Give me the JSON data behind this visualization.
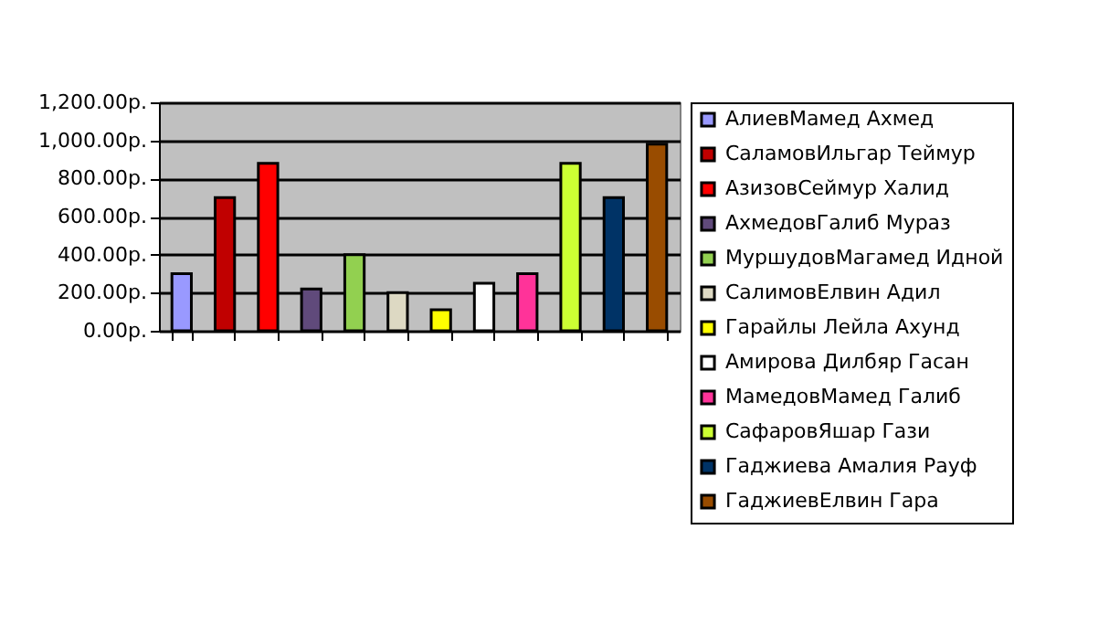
{
  "chart_data": {
    "type": "bar",
    "categories": [
      null,
      null,
      null,
      null,
      null,
      null,
      null,
      null,
      null,
      null,
      null,
      null
    ],
    "series": [
      {
        "name": "АлиевМамед Ахмед",
        "color": "#9999ff",
        "values": [
          300,
          null,
          null,
          null,
          null,
          null,
          null,
          null,
          null,
          null,
          null,
          null
        ]
      },
      {
        "name": "СаламовИльгар Теймур",
        "color": "#c00000",
        "values": [
          null,
          700,
          null,
          null,
          null,
          null,
          null,
          null,
          null,
          null,
          null,
          null
        ]
      },
      {
        "name": "АзизовСеймур Халид",
        "color": "#ff0000",
        "values": [
          null,
          null,
          880,
          null,
          null,
          null,
          null,
          null,
          null,
          null,
          null,
          null
        ]
      },
      {
        "name": "АхмедовГалиб Мураз",
        "color": "#604a7b",
        "values": [
          null,
          null,
          null,
          220,
          null,
          null,
          null,
          null,
          null,
          null,
          null,
          null
        ]
      },
      {
        "name": "МуршудовМагамед Идной",
        "color": "#92d050",
        "values": [
          null,
          null,
          null,
          null,
          400,
          null,
          null,
          null,
          null,
          null,
          null,
          null
        ]
      },
      {
        "name": "СалимовЕлвин Адил",
        "color": "#ddd9c3",
        "values": [
          null,
          null,
          null,
          null,
          null,
          200,
          null,
          null,
          null,
          null,
          null,
          null
        ]
      },
      {
        "name": "Гарайлы Лейла Ахунд",
        "color": "#ffff00",
        "values": [
          null,
          null,
          null,
          null,
          null,
          null,
          110,
          null,
          null,
          null,
          null,
          null
        ]
      },
      {
        "name": "Амирова Дилбяр Гасан",
        "color": "#ffffff",
        "values": [
          null,
          null,
          null,
          null,
          null,
          null,
          null,
          250,
          null,
          null,
          null,
          null
        ]
      },
      {
        "name": "МамедовМамед Галиб",
        "color": "#ff3399",
        "values": [
          null,
          null,
          null,
          null,
          null,
          null,
          null,
          null,
          300,
          null,
          null,
          null
        ]
      },
      {
        "name": "СафаровЯшар Гази",
        "color": "#ccff33",
        "values": [
          null,
          null,
          null,
          null,
          null,
          null,
          null,
          null,
          null,
          880,
          null,
          null
        ]
      },
      {
        "name": "Гаджиева Амалия Рауф",
        "color": "#003366",
        "values": [
          null,
          null,
          null,
          null,
          null,
          null,
          null,
          null,
          null,
          null,
          700,
          null
        ]
      },
      {
        "name": "ГаджиевЕлвин Гара",
        "color": "#994c00",
        "values": [
          null,
          null,
          null,
          null,
          null,
          null,
          null,
          null,
          null,
          null,
          null,
          980
        ]
      }
    ],
    "ylim": [
      0,
      1200
    ],
    "yticks": [
      {
        "value": 0,
        "label": "0.00р."
      },
      {
        "value": 200,
        "label": "200.00р."
      },
      {
        "value": 400,
        "label": "400.00р."
      },
      {
        "value": 600,
        "label": "600.00р."
      },
      {
        "value": 800,
        "label": "800.00р."
      },
      {
        "value": 1000,
        "label": "1,000.00р."
      },
      {
        "value": 1200,
        "label": "1,200.00р."
      }
    ],
    "grid": "y",
    "legend": "right",
    "tick_labels": "y"
  }
}
